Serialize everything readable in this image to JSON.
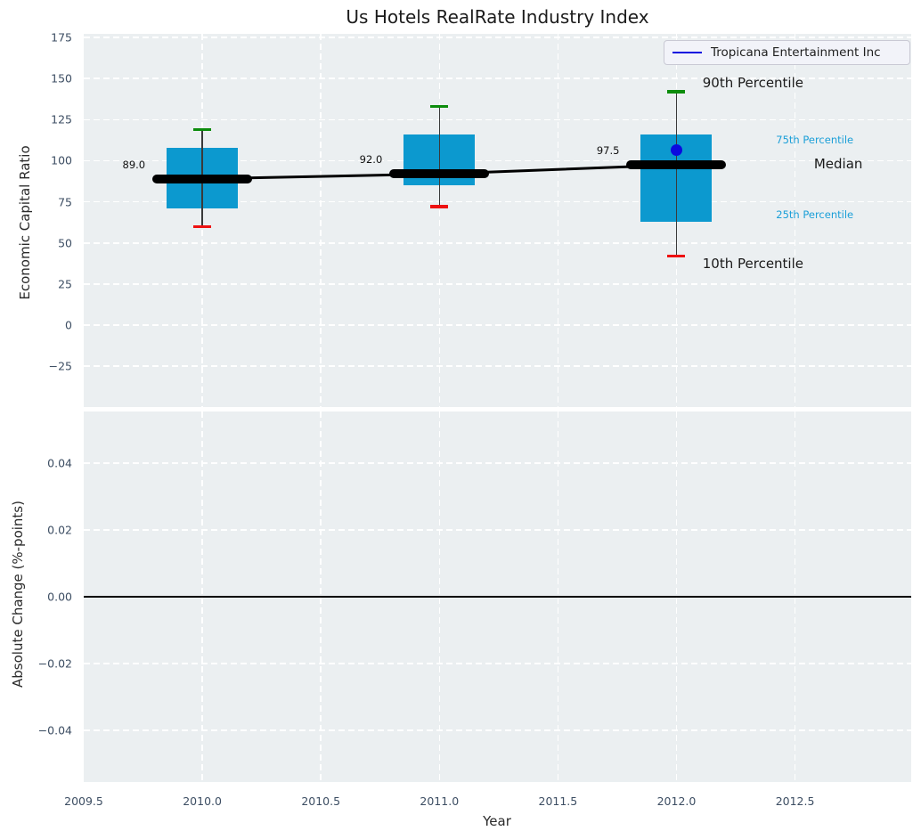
{
  "title": "Us Hotels RealRate Industry Index",
  "legend": {
    "label": "Tropicana Entertainment Inc"
  },
  "colors": {
    "panel_background": "#ebeff1",
    "grid": "#ffffff",
    "box_fill": "#0c99cf",
    "whisker": "#3a3a3a",
    "cap_90th": "#0c8c0c",
    "cap_10th": "#ee1111",
    "median": "#000000",
    "company_blue": "#0b0bdf",
    "tick_label": "#3d4e63",
    "annotation_accent": "#1b9fd8"
  },
  "chart_data": [
    {
      "type": "boxplot",
      "panel": "top",
      "title": "Us Hotels RealRate Industry Index",
      "ylabel": "Economic Capital Ratio",
      "xlabel": "Year",
      "xlim": [
        2009.5,
        2012.99
      ],
      "ylim": [
        -49.8,
        177.2
      ],
      "grid": "white-dashed",
      "legend_position": "upper-right",
      "xticks": {
        "values": [
          2009.5,
          2010.0,
          2010.5,
          2011.0,
          2011.5,
          2012.0,
          2012.5
        ],
        "labels": [
          "2009.5",
          "2010.0",
          "2010.5",
          "2011.0",
          "2011.5",
          "2012.0",
          "2012.5"
        ]
      },
      "yticks": {
        "values": [
          175,
          150,
          125,
          100,
          75,
          50,
          25,
          0,
          -25
        ],
        "labels": [
          "175",
          "150",
          "125",
          "100",
          "75",
          "50",
          "25",
          "0",
          "−25"
        ]
      },
      "boxes": [
        {
          "year": 2010,
          "p10": 60,
          "p25": 71,
          "median": 89,
          "p75": 108,
          "p90": 119,
          "label": "89.0"
        },
        {
          "year": 2011,
          "p10": 72,
          "p25": 85,
          "median": 92,
          "p75": 116,
          "p90": 133,
          "label": "92.0"
        },
        {
          "year": 2012,
          "p10": 42,
          "p25": 63,
          "median": 97.5,
          "p75": 116,
          "p90": 142,
          "label": "97.5"
        }
      ],
      "median_trend": {
        "years": [
          2010,
          2011,
          2012
        ],
        "values": [
          89,
          92,
          97.5
        ]
      },
      "company_series": {
        "name": "Tropicana Entertainment Inc",
        "points": [
          {
            "year": 2012,
            "value": 106.5
          }
        ]
      },
      "annotations": [
        {
          "text": "90th Percentile",
          "year": 2012.11,
          "value": 147.5,
          "style": "large"
        },
        {
          "text": "75th Percentile",
          "year": 2012.42,
          "value": 112.5,
          "style": "small"
        },
        {
          "text": "Median",
          "year": 2012.58,
          "value": 98.0,
          "style": "large"
        },
        {
          "text": "25th Percentile",
          "year": 2012.42,
          "value": 67.0,
          "style": "small"
        },
        {
          "text": "10th Percentile",
          "year": 2012.11,
          "value": 37.5,
          "style": "large"
        }
      ]
    },
    {
      "type": "line",
      "panel": "bottom",
      "ylabel": "Absolute Change (%-points)",
      "ylim": [
        -0.0555,
        0.0555
      ],
      "grid": "white-dashed",
      "yticks": {
        "values": [
          0.04,
          0.02,
          0.0,
          -0.02,
          -0.04
        ],
        "labels": [
          "0.04",
          "0.02",
          "0.00",
          "−0.02",
          "−0.04"
        ]
      },
      "zero_line": 0.0,
      "series": []
    }
  ]
}
